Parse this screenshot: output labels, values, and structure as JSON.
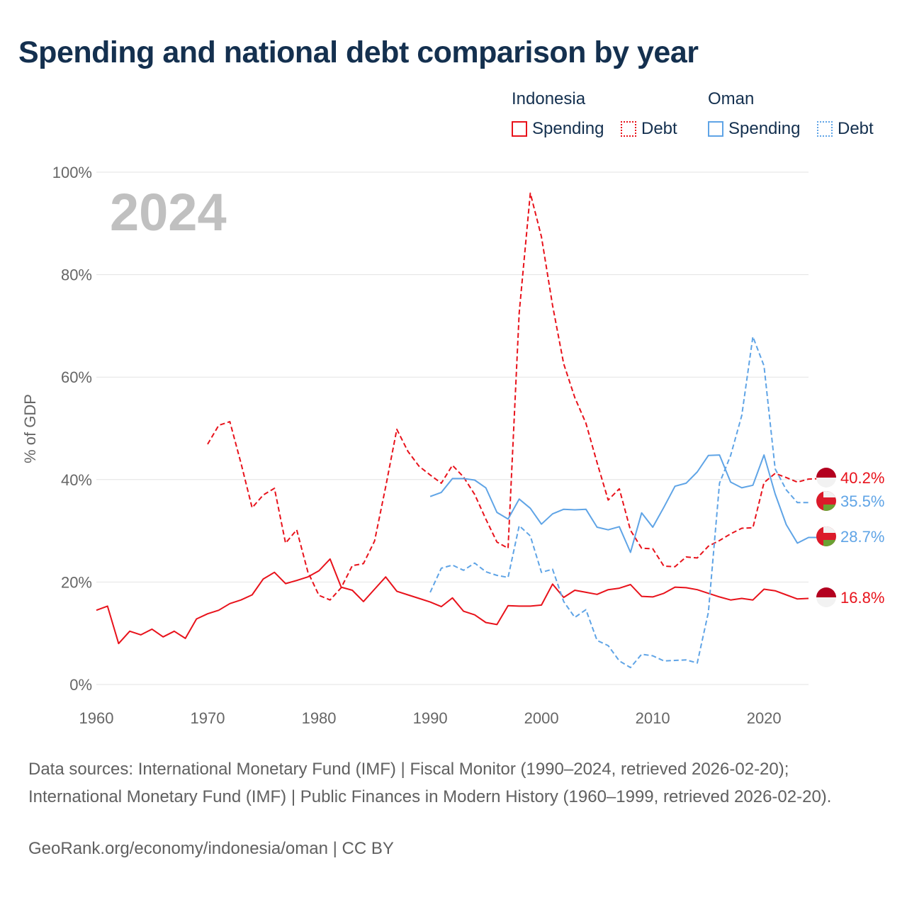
{
  "title": "Spending and national debt comparison by year",
  "legend": {
    "groups": [
      {
        "name": "Indonesia",
        "items": [
          {
            "label": "Spending",
            "style": "solid",
            "color": "#e8121b"
          },
          {
            "label": "Debt",
            "style": "dotted",
            "color": "#e8121b"
          }
        ]
      },
      {
        "name": "Oman",
        "items": [
          {
            "label": "Spending",
            "style": "solid",
            "color": "#5fa4e6"
          },
          {
            "label": "Debt",
            "style": "dotted",
            "color": "#5fa4e6"
          }
        ]
      }
    ]
  },
  "chart_data": {
    "type": "line",
    "year_label": "2024",
    "ylabel": "% of GDP",
    "xlim": [
      1960,
      2024
    ],
    "ylim": [
      0,
      100
    ],
    "x_ticks": [
      1960,
      1970,
      1980,
      1990,
      2000,
      2010,
      2020
    ],
    "y_ticks": [
      0,
      20,
      40,
      60,
      80,
      100
    ],
    "y_tick_labels": [
      "0%",
      "20%",
      "40%",
      "60%",
      "80%",
      "100%"
    ],
    "series": [
      {
        "name": "Indonesia Spending",
        "country": "Indonesia",
        "measure": "Spending",
        "color": "#e8121b",
        "dash": "solid",
        "end_label": "16.8%",
        "x_start": 1960,
        "values": [
          14.5,
          15.3,
          8.0,
          10.4,
          9.7,
          10.8,
          9.3,
          10.4,
          9.0,
          12.8,
          13.8,
          14.5,
          15.8,
          16.5,
          17.5,
          20.6,
          21.9,
          19.7,
          20.3,
          21.0,
          22.2,
          24.5,
          19.0,
          18.4,
          16.2,
          18.6,
          21.0,
          18.2,
          17.5,
          16.8,
          16.1,
          15.2,
          16.9,
          14.3,
          13.6,
          12.1,
          11.7,
          15.4,
          15.3,
          15.3,
          15.5,
          19.6,
          17.0,
          18.4,
          18.0,
          17.6,
          18.5,
          18.8,
          19.5,
          17.2,
          17.1,
          17.8,
          19.0,
          18.9,
          18.5,
          17.8,
          17.1,
          16.5,
          16.8,
          16.5,
          18.6,
          18.3,
          17.5,
          16.7,
          16.8
        ]
      },
      {
        "name": "Indonesia Debt",
        "country": "Indonesia",
        "measure": "Debt",
        "color": "#e8121b",
        "dash": "dashed",
        "end_label": "40.2%",
        "x_start": 1970,
        "values": [
          46.9,
          50.6,
          51.3,
          43.2,
          34.5,
          37.0,
          38.3,
          27.6,
          30.2,
          22.0,
          17.4,
          16.5,
          18.9,
          23.2,
          23.6,
          28.0,
          38.6,
          49.8,
          45.5,
          42.6,
          40.9,
          39.3,
          42.8,
          40.5,
          37.1,
          32.3,
          27.8,
          26.6,
          72.5,
          95.9,
          87.4,
          74.0,
          62.6,
          56.0,
          51.0,
          43.3,
          36.0,
          38.2,
          30.1,
          26.6,
          26.5,
          23.1,
          23.0,
          24.9,
          24.7,
          27.0,
          28.1,
          29.4,
          30.5,
          30.6,
          39.4,
          41.2,
          40.4,
          39.5,
          40.1,
          40.2
        ]
      },
      {
        "name": "Oman Spending",
        "country": "Oman",
        "measure": "Spending",
        "color": "#5fa4e6",
        "dash": "solid",
        "end_label": "28.7%",
        "x_start": 1990,
        "values": [
          36.7,
          37.5,
          40.2,
          40.2,
          39.9,
          38.4,
          33.6,
          32.3,
          36.2,
          34.4,
          31.3,
          33.3,
          34.2,
          34.1,
          34.2,
          30.7,
          30.2,
          30.8,
          25.8,
          33.5,
          30.7,
          34.6,
          38.7,
          39.3,
          41.5,
          44.7,
          44.8,
          39.5,
          38.4,
          38.9,
          44.8,
          37.2,
          31.2,
          27.6,
          28.7,
          28.7
        ]
      },
      {
        "name": "Oman Debt",
        "country": "Oman",
        "measure": "Debt",
        "color": "#5fa4e6",
        "dash": "dashed",
        "end_label": "35.5%",
        "x_start": 1990,
        "values": [
          18.0,
          22.7,
          23.3,
          22.3,
          23.7,
          22.0,
          21.3,
          20.9,
          31.0,
          29.0,
          21.9,
          22.5,
          16.2,
          13.1,
          14.6,
          8.6,
          7.6,
          4.6,
          3.3,
          5.9,
          5.6,
          4.6,
          4.7,
          4.8,
          4.2,
          14.1,
          39.3,
          44.7,
          52.5,
          67.9,
          62.2,
          42.1,
          38.0,
          35.5,
          35.5
        ]
      }
    ]
  },
  "footer": {
    "source": "Data sources: International Monetary Fund (IMF) | Fiscal Monitor (1990–2024, retrieved 2026-02-20); International Monetary Fund (IMF) | Public Finances in Modern History (1960–1999, retrieved 2026-02-20).",
    "credit": "GeoRank.org/economy/indonesia/oman | CC BY"
  }
}
